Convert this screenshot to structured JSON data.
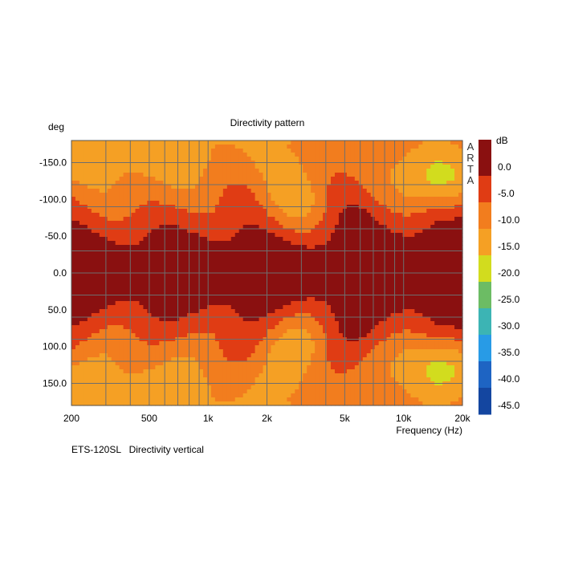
{
  "chart_data": {
    "type": "heatmap",
    "title": "Directivity pattern",
    "xlabel": "Frequency (Hz)",
    "ylabel": "deg",
    "x_scale": "log",
    "xlim": [
      200,
      20000
    ],
    "ylim": [
      -180,
      180
    ],
    "x_ticks": [
      {
        "value": 200,
        "label": "200"
      },
      {
        "value": 500,
        "label": "500"
      },
      {
        "value": 1000,
        "label": "1k"
      },
      {
        "value": 2000,
        "label": "2k"
      },
      {
        "value": 5000,
        "label": "5k"
      },
      {
        "value": 10000,
        "label": "10k"
      },
      {
        "value": 20000,
        "label": "20k"
      }
    ],
    "y_ticks": [
      {
        "value": -150,
        "label": "-150.0"
      },
      {
        "value": -100,
        "label": "-100.0"
      },
      {
        "value": -50,
        "label": "-50.0"
      },
      {
        "value": 0,
        "label": "0.0"
      },
      {
        "value": 50,
        "label": "50.0"
      },
      {
        "value": 100,
        "label": "100.0"
      },
      {
        "value": 150,
        "label": "150.0"
      }
    ],
    "grid": true,
    "colorbar": {
      "unit": "dB",
      "levels": [
        {
          "label": "0.0",
          "color": "#8a1010"
        },
        {
          "label": "-5.0",
          "color": "#e03c14"
        },
        {
          "label": "-10.0",
          "color": "#f27d1e"
        },
        {
          "label": "-15.0",
          "color": "#f5a024"
        },
        {
          "label": "-20.0",
          "color": "#d2dc1e"
        },
        {
          "label": "-25.0",
          "color": "#6cbc64"
        },
        {
          "label": "-30.0",
          "color": "#3cb4b4"
        },
        {
          "label": "-35.0",
          "color": "#289be6"
        },
        {
          "label": "-40.0",
          "color": "#1e64c3"
        },
        {
          "label": "-45.0",
          "color": "#1446a0"
        }
      ],
      "top_color": "#8a1010"
    },
    "band_colors": [
      "#8a1010",
      "#e03c14",
      "#f27d1e",
      "#f5a024",
      "#d2dc1e",
      "#6cbc64",
      "#3cb4b4",
      "#289be6",
      "#1e64c3",
      "#1446a0"
    ],
    "levels_db": [
      0,
      -5,
      -10,
      -15,
      -20,
      -25,
      -30,
      -35,
      -40,
      -45
    ]
  },
  "watermark": "ARTA",
  "caption": "ETS-120SL   Directivity vertical"
}
